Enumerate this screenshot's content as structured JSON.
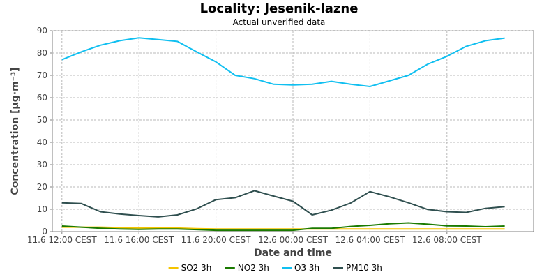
{
  "chart_data": {
    "type": "line",
    "title": "Locality: Jesenik-lazne",
    "subtitle": "Actual unverified data",
    "xlabel": "Date and time",
    "ylabel": "Concentration [µg·m⁻³]",
    "ylim": [
      0,
      90
    ],
    "y_ticks": [
      0,
      10,
      20,
      30,
      40,
      50,
      60,
      70,
      80,
      90
    ],
    "x_range": [
      0,
      24
    ],
    "x_ticks": [
      {
        "x": 0,
        "label": "11.6 12:00 CEST"
      },
      {
        "x": 4,
        "label": "11.6 16:00 CEST"
      },
      {
        "x": 8,
        "label": "11.6 20:00 CEST"
      },
      {
        "x": 12,
        "label": "12.6 00:00 CEST"
      },
      {
        "x": 16,
        "label": "12.6 04:00 CEST"
      },
      {
        "x": 20,
        "label": "12.6 08:00 CEST"
      }
    ],
    "grid": true,
    "legend_position": "bottom",
    "x": [
      "11.6 12:00",
      "11.6 13:00",
      "11.6 14:00",
      "11.6 15:00",
      "11.6 16:00",
      "11.6 17:00",
      "11.6 18:00",
      "11.6 19:00",
      "11.6 20:00",
      "11.6 21:00",
      "11.6 22:00",
      "11.6 23:00",
      "12.6 00:00",
      "12.6 01:00",
      "12.6 02:00",
      "12.6 03:00",
      "12.6 04:00",
      "12.6 05:00",
      "12.6 06:00",
      "12.6 07:00",
      "12.6 08:00",
      "12.6 09:00",
      "12.6 10:00",
      "12.6 11:00"
    ],
    "series": [
      {
        "name": "SO2 3h",
        "color": "#f5c400",
        "values": [
          2.0,
          2.0,
          2.0,
          1.8,
          1.6,
          1.6,
          1.6,
          1.3,
          1.2,
          1.2,
          1.2,
          1.2,
          1.2,
          1.2,
          1.2,
          1.2,
          1.2,
          1.2,
          1.2,
          1.2,
          1.2,
          1.2,
          1.2,
          1.2
        ]
      },
      {
        "name": "NO2 3h",
        "color": "#1a7a00",
        "values": [
          2.5,
          2.0,
          1.5,
          1.2,
          1.0,
          1.2,
          1.2,
          0.9,
          0.6,
          0.6,
          0.6,
          0.6,
          0.6,
          1.5,
          1.5,
          2.3,
          2.8,
          3.5,
          3.9,
          3.3,
          2.6,
          2.5,
          2.2,
          2.5
        ]
      },
      {
        "name": "O3 3h",
        "color": "#10bff0",
        "values": [
          77,
          80.5,
          83.5,
          85.5,
          86.8,
          86,
          85.2,
          80.5,
          76,
          70,
          68.5,
          66,
          65.7,
          66,
          67.3,
          66,
          65,
          67.5,
          70,
          75,
          78.5,
          83,
          85.5,
          86.7
        ]
      },
      {
        "name": "PM10 3h",
        "color": "#2f4f4f",
        "values": [
          12.9,
          12.6,
          8.9,
          7.9,
          7.2,
          6.6,
          7.5,
          10.2,
          14.3,
          15.2,
          18.3,
          15.9,
          13.6,
          7.5,
          9.6,
          12.8,
          17.9,
          15.6,
          12.9,
          9.9,
          8.9,
          8.6,
          10.4,
          11.2
        ]
      }
    ]
  }
}
